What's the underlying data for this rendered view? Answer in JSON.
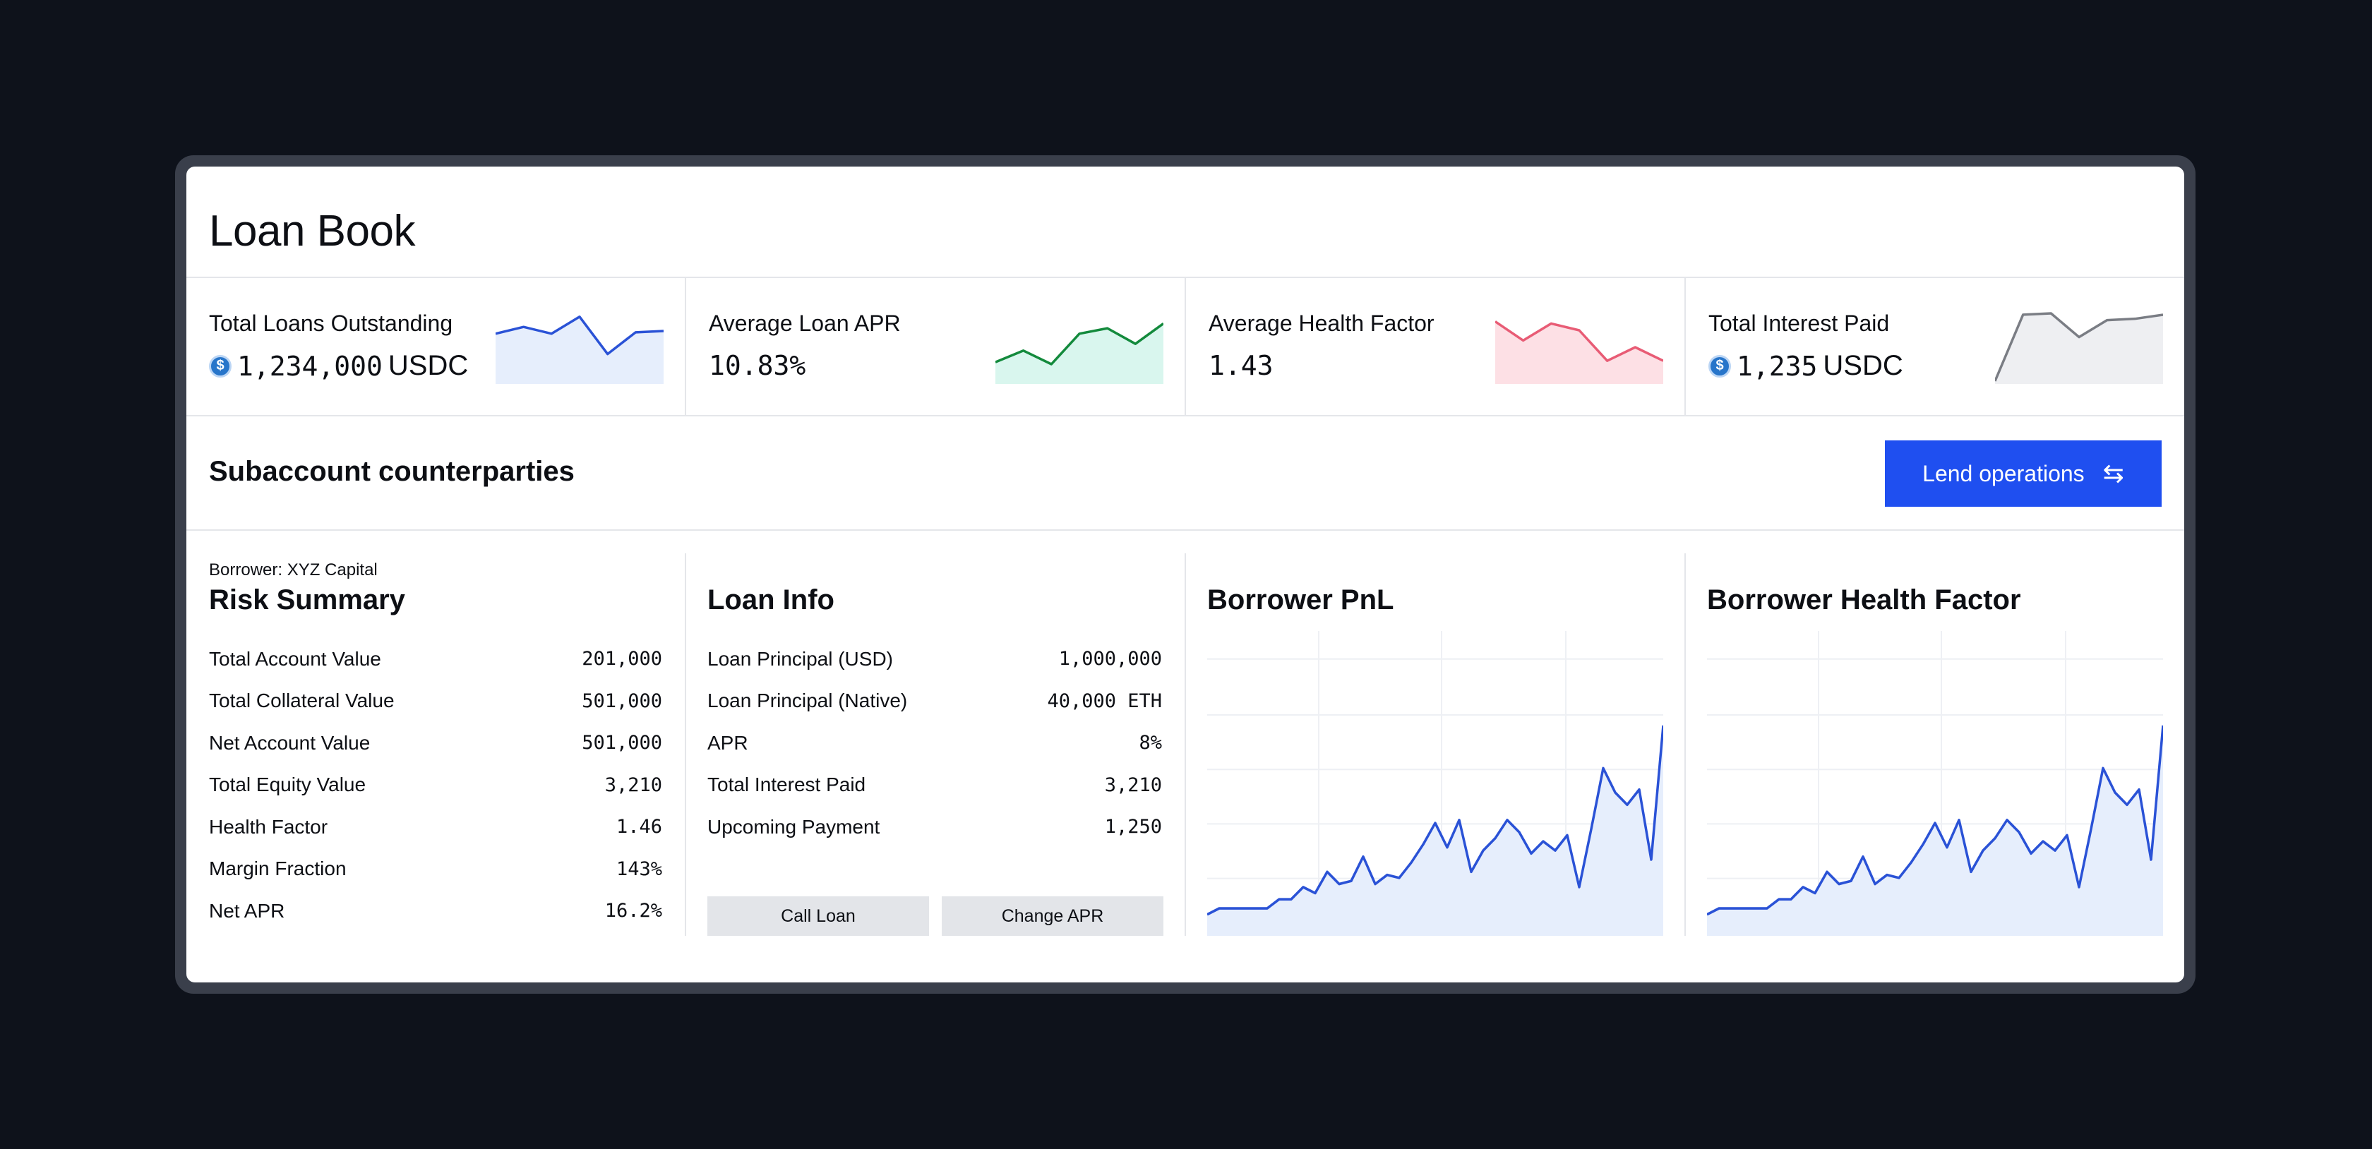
{
  "page": {
    "title": "Loan Book"
  },
  "stats": [
    {
      "label": "Total Loans Outstanding",
      "value": "1,234,000",
      "unit": "USDC",
      "coin": true,
      "spark": [
        0.7,
        0.8,
        0.7,
        0.95,
        0.4,
        0.72,
        0.74
      ],
      "stroke": "#2a52d6",
      "fill": "#e6eefc"
    },
    {
      "label": "Average Loan APR",
      "value": "10.83%",
      "unit": "",
      "coin": false,
      "spark": [
        0.28,
        0.45,
        0.25,
        0.7,
        0.78,
        0.55,
        0.85
      ],
      "stroke": "#138a3c",
      "fill": "#d9f6ee"
    },
    {
      "label": "Average Health Factor",
      "value": "1.43",
      "unit": "",
      "coin": false,
      "spark": [
        0.88,
        0.6,
        0.85,
        0.75,
        0.3,
        0.5,
        0.3
      ],
      "stroke": "#e85c75",
      "fill": "#fde0e5"
    },
    {
      "label": "Total Interest Paid",
      "value": "1,235",
      "unit": "USDC",
      "coin": true,
      "spark": [
        0.0,
        0.98,
        1.0,
        0.65,
        0.9,
        0.92,
        0.98
      ],
      "stroke": "#7a7d84",
      "fill": "#eeeff2"
    }
  ],
  "section": {
    "title": "Subaccount counterparties",
    "button_label": "Lend operations",
    "button_icon": "swap-arrows-icon"
  },
  "risk": {
    "borrower": "Borrower: XYZ Capital",
    "title": "Risk Summary",
    "rows": [
      {
        "label": "Total Account Value",
        "value": "201,000"
      },
      {
        "label": "Total Collateral Value",
        "value": "501,000"
      },
      {
        "label": "Net Account Value",
        "value": "501,000"
      },
      {
        "label": "Total Equity Value",
        "value": "3,210"
      },
      {
        "label": "Health Factor",
        "value": "1.46"
      },
      {
        "label": "Margin Fraction",
        "value": "143%"
      },
      {
        "label": "Net APR",
        "value": "16.2%"
      }
    ]
  },
  "loan": {
    "title": "Loan Info",
    "rows": [
      {
        "label": "Loan Principal (USD)",
        "value": "1,000,000"
      },
      {
        "label": "Loan Principal (Native)",
        "value": "40,000 ETH"
      },
      {
        "label": "APR",
        "value": "8%"
      },
      {
        "label": "Total Interest Paid",
        "value": "3,210"
      },
      {
        "label": "Upcoming Payment",
        "value": "1,250"
      }
    ],
    "actions": [
      "Call Loan",
      "Change APR"
    ]
  },
  "charts": [
    {
      "title": "Borrower PnL"
    },
    {
      "title": "Borrower Health Factor"
    }
  ],
  "chart_data": [
    {
      "type": "area",
      "title": "Borrower PnL",
      "values": [
        0.07,
        0.09,
        0.09,
        0.09,
        0.09,
        0.09,
        0.12,
        0.12,
        0.16,
        0.14,
        0.21,
        0.17,
        0.18,
        0.26,
        0.17,
        0.2,
        0.19,
        0.24,
        0.3,
        0.37,
        0.29,
        0.38,
        0.21,
        0.28,
        0.32,
        0.38,
        0.34,
        0.27,
        0.31,
        0.28,
        0.33,
        0.16,
        0.35,
        0.55,
        0.47,
        0.43,
        0.48,
        0.25,
        0.69
      ],
      "stroke": "#2a52d6",
      "fill": "#e6eefc"
    },
    {
      "type": "area",
      "title": "Borrower Health Factor",
      "values": [
        0.07,
        0.09,
        0.09,
        0.09,
        0.09,
        0.09,
        0.12,
        0.12,
        0.16,
        0.14,
        0.21,
        0.17,
        0.18,
        0.26,
        0.17,
        0.2,
        0.19,
        0.24,
        0.3,
        0.37,
        0.29,
        0.38,
        0.21,
        0.28,
        0.32,
        0.38,
        0.34,
        0.27,
        0.31,
        0.28,
        0.33,
        0.16,
        0.35,
        0.55,
        0.47,
        0.43,
        0.48,
        0.25,
        0.69
      ],
      "stroke": "#2a52d6",
      "fill": "#e6eefc"
    }
  ]
}
